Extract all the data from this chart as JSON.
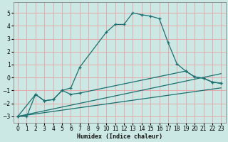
{
  "background_color": "#cce8e4",
  "grid_color": "#e8a0a0",
  "line_color": "#1a7070",
  "xlabel": "Humidex (Indice chaleur)",
  "xlim": [
    -0.5,
    23.5
  ],
  "ylim": [
    -3.5,
    5.8
  ],
  "yticks": [
    -3,
    -2,
    -1,
    0,
    1,
    2,
    3,
    4,
    5
  ],
  "xticks": [
    0,
    1,
    2,
    3,
    4,
    5,
    6,
    7,
    8,
    9,
    10,
    11,
    12,
    13,
    14,
    15,
    16,
    17,
    18,
    19,
    20,
    21,
    22,
    23
  ],
  "line1_x": [
    0,
    1,
    2,
    3,
    4,
    5,
    6,
    7,
    10,
    11,
    12,
    13,
    14,
    15,
    16,
    17,
    18,
    19,
    20,
    21,
    22,
    23
  ],
  "line1_y": [
    -3.0,
    -3.0,
    -1.3,
    -1.8,
    -1.7,
    -1.0,
    -0.8,
    0.8,
    3.5,
    4.1,
    4.1,
    5.0,
    4.85,
    4.75,
    4.55,
    2.7,
    1.05,
    0.5,
    0.05,
    -0.05,
    -0.35,
    -0.45
  ],
  "line2_x": [
    0,
    2,
    3,
    4,
    5,
    6,
    7,
    19,
    20,
    21,
    22,
    23
  ],
  "line2_y": [
    -3.0,
    -1.3,
    -1.8,
    -1.7,
    -1.0,
    -1.3,
    -1.2,
    0.5,
    0.05,
    -0.05,
    -0.35,
    -0.45
  ],
  "line3_x": [
    0,
    23
  ],
  "line3_y": [
    -3.0,
    0.3
  ],
  "line4_x": [
    0,
    23
  ],
  "line4_y": [
    -3.0,
    -0.8
  ]
}
